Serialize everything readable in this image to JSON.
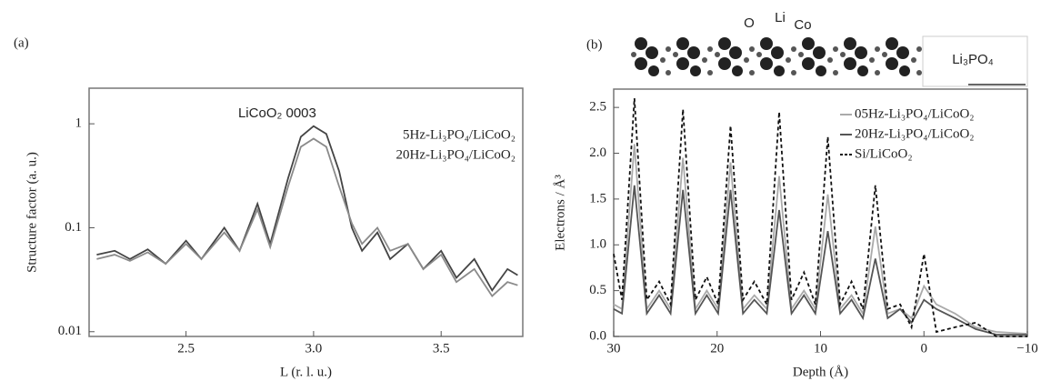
{
  "chart_data": [
    {
      "type": "line",
      "panel_label": "(a)",
      "x_label": "L (r. l. u.)",
      "y_label": "Structure factor (a. u.)",
      "annotation": "LiCoO₂ 0003",
      "log_y": true,
      "legend": "upper right",
      "xlim": [
        2.12,
        3.82
      ],
      "ylim": [
        0.009,
        2.2
      ],
      "xticks": [
        2.5,
        {
          "value": 3,
          "label": "3.0"
        },
        3.5
      ],
      "yticks": [
        0.01,
        0.1,
        1
      ],
      "x": [
        2.15,
        2.22,
        2.28,
        2.35,
        2.42,
        2.5,
        2.56,
        2.65,
        2.71,
        2.78,
        2.83,
        2.9,
        2.95,
        3.0,
        3.05,
        3.1,
        3.15,
        3.19,
        3.25,
        3.3,
        3.37,
        3.43,
        3.5,
        3.56,
        3.63,
        3.7,
        3.76,
        3.8
      ],
      "series": [
        {
          "name": "5Hz-Li₃PO₄/LiCoO₂",
          "color": "#444444",
          "values": [
            0.055,
            0.06,
            0.05,
            0.062,
            0.045,
            0.075,
            0.05,
            0.1,
            0.06,
            0.17,
            0.07,
            0.3,
            0.75,
            0.95,
            0.8,
            0.35,
            0.1,
            0.06,
            0.09,
            0.05,
            0.07,
            0.04,
            0.06,
            0.033,
            0.05,
            0.025,
            0.04,
            0.035
          ]
        },
        {
          "name": "20Hz-Li₃PO₄/LiCoO₂",
          "color": "#8a8a8a",
          "values": [
            0.05,
            0.055,
            0.048,
            0.058,
            0.045,
            0.07,
            0.05,
            0.09,
            0.06,
            0.15,
            0.065,
            0.25,
            0.6,
            0.72,
            0.6,
            0.25,
            0.11,
            0.07,
            0.1,
            0.06,
            0.07,
            0.04,
            0.055,
            0.03,
            0.04,
            0.022,
            0.03,
            0.028
          ]
        }
      ]
    },
    {
      "type": "line",
      "panel_label": "(b)",
      "x_label": "Depth (Å)",
      "y_label": "Electrons / Å³",
      "structure_labels": [
        "O",
        "Li",
        "Co",
        "Li₃PO₄"
      ],
      "legend": "upper right",
      "xlim": [
        30,
        -10
      ],
      "ylim": [
        0,
        2.7
      ],
      "xticks": [
        30,
        20,
        10,
        0,
        {
          "value": -10,
          "label": "−10"
        }
      ],
      "yticks": [
        {
          "value": 0,
          "label": "0.0"
        },
        0.5,
        {
          "value": 1,
          "label": "1.0"
        },
        1.5,
        {
          "value": 2,
          "label": "2.0"
        },
        2.5
      ],
      "x": [
        30,
        29.2,
        28,
        26.8,
        25.6,
        24.5,
        23.3,
        22.1,
        21,
        19.9,
        18.7,
        17.5,
        16.4,
        15.2,
        14,
        12.8,
        11.6,
        10.5,
        9.3,
        8.1,
        7,
        5.9,
        4.7,
        3.5,
        2.3,
        1.2,
        0,
        -1.2,
        -3,
        -5,
        -7,
        -10
      ],
      "series": [
        {
          "name": "05Hz-Li₃PO₄/LiCoO₂",
          "color": "#aaaaaa",
          "dashed": false,
          "values": [
            0.35,
            0.3,
            2.1,
            0.3,
            0.5,
            0.3,
            1.95,
            0.3,
            0.5,
            0.3,
            1.9,
            0.3,
            0.45,
            0.3,
            1.75,
            0.3,
            0.5,
            0.3,
            1.55,
            0.3,
            0.45,
            0.25,
            1.2,
            0.25,
            0.3,
            0.2,
            0.55,
            0.35,
            0.25,
            0.1,
            0.05,
            0.03
          ]
        },
        {
          "name": "20Hz-Li₃PO₄/LiCoO₂",
          "color": "#555555",
          "dashed": false,
          "values": [
            0.3,
            0.25,
            1.65,
            0.25,
            0.45,
            0.25,
            1.6,
            0.25,
            0.45,
            0.25,
            1.6,
            0.25,
            0.4,
            0.25,
            1.38,
            0.25,
            0.45,
            0.25,
            1.15,
            0.25,
            0.4,
            0.2,
            0.85,
            0.2,
            0.3,
            0.15,
            0.4,
            0.3,
            0.2,
            0.08,
            0.02,
            0.02
          ]
        },
        {
          "name": "Si/LiCoO₂",
          "color": "#111111",
          "dashed": true,
          "values": [
            0.9,
            0.4,
            2.6,
            0.4,
            0.6,
            0.35,
            2.48,
            0.4,
            0.65,
            0.35,
            2.3,
            0.4,
            0.6,
            0.35,
            2.45,
            0.4,
            0.7,
            0.35,
            2.18,
            0.35,
            0.6,
            0.3,
            1.65,
            0.3,
            0.35,
            0.1,
            0.9,
            0.05,
            0.1,
            0.15,
            0,
            0
          ]
        }
      ]
    }
  ]
}
